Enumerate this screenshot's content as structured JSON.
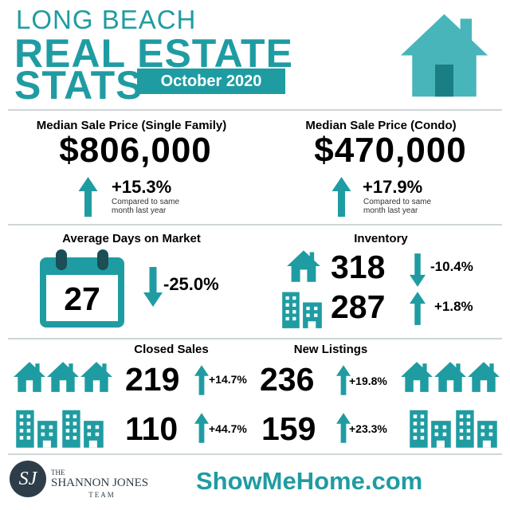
{
  "header": {
    "city": "LONG BEACH",
    "title_line1": "REAL ESTATE",
    "title_line2": "STATS",
    "period": "October 2020"
  },
  "median_single_family": {
    "label": "Median Sale Price (Single Family)",
    "value": "$806,000",
    "change": "+15.3%",
    "note": [
      "Compared to same",
      "month last year"
    ]
  },
  "median_condo": {
    "label": "Median Sale Price (Condo)",
    "value": "$470,000",
    "change": "+17.9%",
    "note": [
      "Compared to same",
      "month last year"
    ]
  },
  "days_on_market": {
    "label": "Average Days on Market",
    "value": "27",
    "change": "-25.0%"
  },
  "inventory": {
    "label": "Inventory",
    "rows": [
      {
        "value": "318",
        "change": "-10.4%"
      },
      {
        "value": "287",
        "change": "+1.8%"
      }
    ]
  },
  "closed_sales": {
    "label": "Closed Sales",
    "rows": [
      {
        "value": "219",
        "change": "+14.7%"
      },
      {
        "value": "110",
        "change": "+44.7%"
      }
    ]
  },
  "new_listings": {
    "label": "New Listings",
    "rows": [
      {
        "value": "236",
        "change": "+19.8%"
      },
      {
        "value": "159",
        "change": "+23.3%"
      }
    ]
  },
  "footer": {
    "logo_initials": "SJ",
    "logo_the": "THE",
    "logo_name": "SHANNON JONES",
    "logo_team": "TEAM",
    "website": "ShowMeHome.com"
  }
}
